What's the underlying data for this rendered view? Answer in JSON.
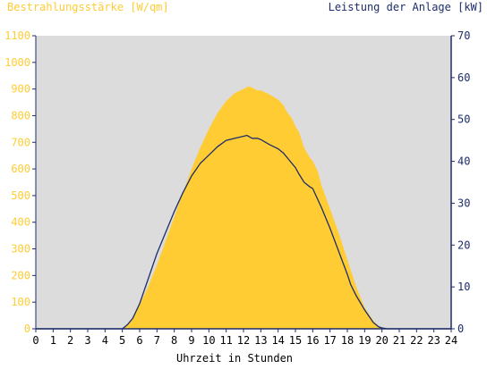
{
  "chart_data": {
    "type": "area",
    "title_left": "Bestrahlungsstärke [W/qm]",
    "title_right": "Leistung der Anlage [kW]",
    "xlabel": "Uhrzeit in Stunden",
    "xlim": [
      0,
      24
    ],
    "x_ticks": [
      "0",
      "1",
      "2",
      "3",
      "4",
      "5",
      "6",
      "7",
      "8",
      "9",
      "10",
      "11",
      "12",
      "13",
      "14",
      "15",
      "16",
      "17",
      "18",
      "19",
      "20",
      "21",
      "22",
      "23",
      "24"
    ],
    "y_left": {
      "lim": [
        0,
        1100
      ],
      "ticks": [
        "0",
        "100",
        "200",
        "300",
        "400",
        "500",
        "600",
        "700",
        "800",
        "900",
        "1000",
        "1100"
      ]
    },
    "y_right": {
      "lim": [
        0,
        70
      ],
      "ticks": [
        "0",
        "10",
        "20",
        "30",
        "40",
        "50",
        "60",
        "70"
      ]
    },
    "grid": false,
    "colors": {
      "irradiance": "#ffcc33",
      "power": "#1e2d6b",
      "plot_bg": "#dcdcdc",
      "left_axis_text": "#ffcc33",
      "right_axis_text": "#1e2d6b"
    },
    "series": [
      {
        "axis": "left",
        "style": "area",
        "x": [
          0,
          5.0,
          5.3,
          5.6,
          6.0,
          6.5,
          7.0,
          7.5,
          8.0,
          8.5,
          9.0,
          9.5,
          10.0,
          10.5,
          11.0,
          11.5,
          12.0,
          12.3,
          12.5,
          12.8,
          13.0,
          13.5,
          14.0,
          14.3,
          14.5,
          14.8,
          15.0,
          15.2,
          15.5,
          15.8,
          16.0,
          16.3,
          16.5,
          17.0,
          17.5,
          18.0,
          18.5,
          19.0,
          19.5,
          19.8,
          20.0,
          20.3,
          24
        ],
        "y": [
          0,
          0,
          15,
          40,
          90,
          160,
          240,
          330,
          420,
          510,
          600,
          680,
          750,
          810,
          855,
          885,
          900,
          910,
          905,
          895,
          895,
          880,
          860,
          840,
          815,
          790,
          760,
          740,
          680,
          645,
          630,
          590,
          540,
          450,
          360,
          260,
          160,
          80,
          30,
          10,
          5,
          0,
          0
        ]
      },
      {
        "axis": "right",
        "style": "line",
        "x": [
          0,
          5.0,
          5.3,
          5.6,
          6.0,
          6.5,
          7.0,
          7.5,
          8.0,
          8.5,
          9.0,
          9.5,
          10.0,
          10.5,
          11.0,
          11.5,
          12.0,
          12.2,
          12.5,
          12.8,
          13.0,
          13.5,
          14.0,
          14.3,
          14.5,
          15.0,
          15.2,
          15.5,
          15.8,
          16.0,
          16.5,
          17.0,
          17.5,
          18.0,
          18.2,
          18.5,
          19.0,
          19.5,
          19.8,
          20.0,
          20.3,
          24
        ],
        "y": [
          0,
          0,
          1,
          2.5,
          6,
          12,
          18,
          23,
          28,
          32.5,
          36.5,
          39.5,
          41.5,
          43.5,
          45,
          45.5,
          46,
          46.2,
          45.5,
          45.5,
          45.2,
          44,
          43,
          42,
          41,
          38.5,
          37,
          35,
          34,
          33.5,
          29,
          24,
          18.5,
          13,
          10.5,
          8,
          4.5,
          1.5,
          0.5,
          0.2,
          0,
          0
        ]
      }
    ]
  }
}
